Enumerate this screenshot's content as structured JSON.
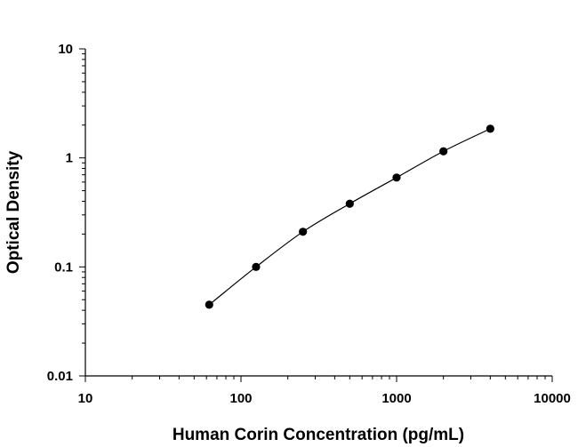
{
  "chart_data": {
    "type": "scatter",
    "xlabel": "Human Corin Concentration (pg/mL)",
    "ylabel": "Optical Density",
    "xscale": "log",
    "yscale": "log",
    "xlim": [
      10,
      10000
    ],
    "ylim": [
      0.01,
      10
    ],
    "x_tick_labels": [
      "10",
      "100",
      "1000",
      "10000"
    ],
    "y_tick_labels": [
      "0.01",
      "0.1",
      "1",
      "10"
    ],
    "grid": false,
    "legend": "none",
    "fit_curve": true,
    "series": [
      {
        "x": [
          62.5,
          125,
          250,
          500,
          1000,
          2000,
          4000
        ],
        "y": [
          0.045,
          0.1,
          0.21,
          0.38,
          0.66,
          1.15,
          1.85
        ]
      }
    ],
    "colors": {
      "marker": "#000000",
      "line": "#000000",
      "axis": "#000000"
    }
  }
}
